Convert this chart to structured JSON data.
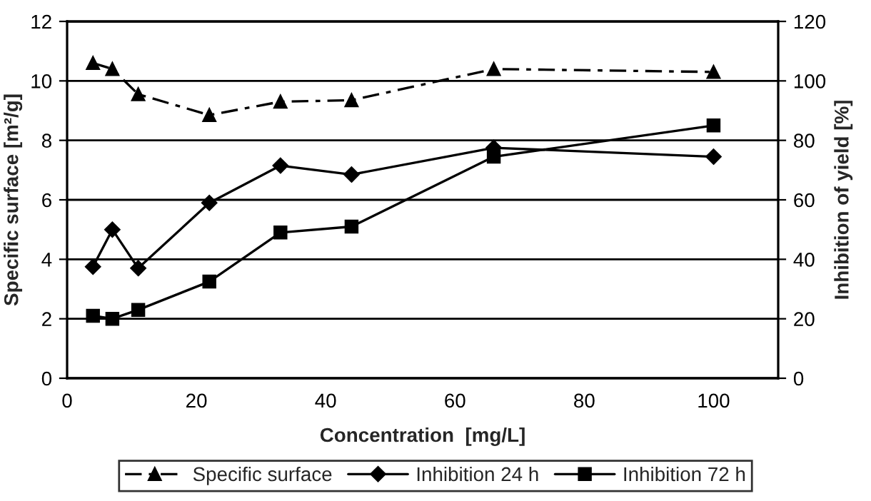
{
  "chart_data": {
    "type": "line",
    "xlabel": "Concentration  [mg/L]",
    "ylabel": "Specific surface [m²/g]",
    "y2label": "Inhibition of yield [%]",
    "x": [
      4,
      7,
      11,
      22,
      33,
      44,
      66,
      100
    ],
    "series": [
      {
        "name": "Specific surface",
        "color": "#000000",
        "marker": "triangle",
        "line_style": "dashed",
        "values": [
          10.6,
          10.4,
          9.55,
          8.85,
          9.3,
          9.35,
          10.4,
          10.3
        ]
      },
      {
        "name": "Inhibition 24 h",
        "color": "#000000",
        "marker": "diamond",
        "line_style": "solid",
        "axis": "y2",
        "values": [
          37.5,
          50,
          37,
          59,
          71.5,
          68.5,
          77.5,
          74.5
        ]
      },
      {
        "name": "Inhibition 72 h",
        "color": "#000000",
        "marker": "square",
        "line_style": "solid",
        "axis": "y2",
        "values": [
          21,
          20,
          23,
          32.5,
          49,
          51,
          74.5,
          85
        ]
      }
    ],
    "xlim": [
      0,
      110
    ],
    "xticks": [
      0,
      20,
      40,
      60,
      80,
      100
    ],
    "ylim": [
      0,
      12
    ],
    "yticks": [
      0,
      2,
      4,
      6,
      8,
      10,
      12
    ],
    "y2lim": [
      0,
      120
    ],
    "y2ticks": [
      0,
      20,
      40,
      60,
      80,
      100,
      120
    ],
    "grid": "y",
    "legend": "bottom"
  }
}
